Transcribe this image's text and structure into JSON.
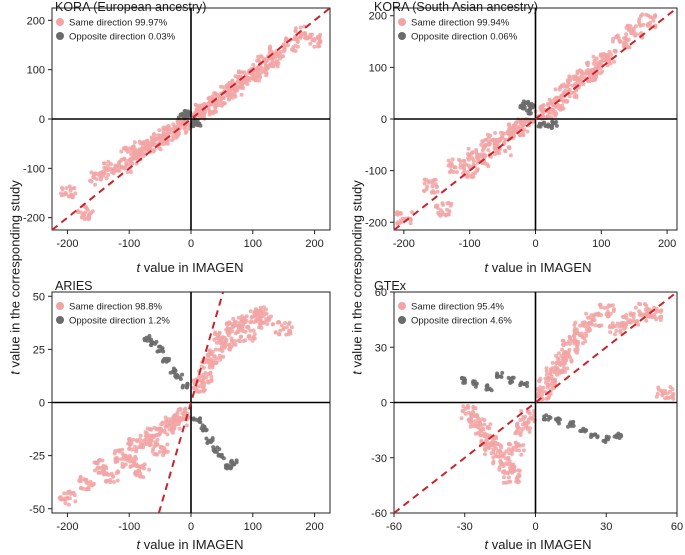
{
  "figure": {
    "ylabel_var": "t",
    "ylabel_rest": " value in the corresponding study",
    "xlabel_var": "t",
    "xlabel_rest": " value in IMAGEN"
  },
  "colors": {
    "same": "#f2a4a4",
    "opposite": "#6b6b6b",
    "diagonal": "#cc2229",
    "axes": "#000000"
  },
  "chart_data": [
    {
      "type": "scatter",
      "title": "KORA (European ancestry)",
      "xlim": [
        -225,
        225
      ],
      "ylim": [
        -225,
        225
      ],
      "xticks": [
        -200,
        -100,
        0,
        100,
        200
      ],
      "yticks": [
        -200,
        -100,
        0,
        100,
        200
      ],
      "diagonal_slope": 1,
      "legend_position": "top-left",
      "series": [
        {
          "name": "Same direction 99.97%",
          "quadrants": "same-sign",
          "points": [
            [
              -200,
              -150
            ],
            [
              -170,
              -190
            ],
            [
              -150,
              -120
            ],
            [
              -130,
              -100
            ],
            [
              -110,
              -95
            ],
            [
              -100,
              -70
            ],
            [
              -90,
              -80
            ],
            [
              -80,
              -60
            ],
            [
              -70,
              -55
            ],
            [
              -60,
              -50
            ],
            [
              -50,
              -40
            ],
            [
              -40,
              -30
            ],
            [
              -30,
              -25
            ],
            [
              -20,
              -15
            ],
            [
              -10,
              -8
            ],
            [
              10,
              8
            ],
            [
              20,
              18
            ],
            [
              30,
              25
            ],
            [
              40,
              35
            ],
            [
              50,
              45
            ],
            [
              60,
              55
            ],
            [
              70,
              60
            ],
            [
              80,
              75
            ],
            [
              90,
              85
            ],
            [
              100,
              90
            ],
            [
              110,
              100
            ],
            [
              120,
              115
            ],
            [
              130,
              120
            ],
            [
              140,
              135
            ],
            [
              160,
              150
            ],
            [
              180,
              175
            ],
            [
              200,
              160
            ]
          ]
        },
        {
          "name": "Opposite direction 0.03%",
          "quadrants": "opposite-sign",
          "points": [
            [
              -15,
              5
            ],
            [
              -10,
              10
            ],
            [
              -5,
              8
            ],
            [
              -8,
              12
            ],
            [
              8,
              -5
            ],
            [
              10,
              -8
            ],
            [
              5,
              -10
            ]
          ]
        }
      ]
    },
    {
      "type": "scatter",
      "title": "KORA (South Asian ancestry)",
      "xlim": [
        -215,
        215
      ],
      "ylim": [
        -215,
        215
      ],
      "xticks": [
        -200,
        -100,
        0,
        100,
        200
      ],
      "yticks": [
        -200,
        -100,
        0,
        100,
        200
      ],
      "diagonal_slope": 1,
      "legend_position": "top-left",
      "series": [
        {
          "name": "Same direction 99.94%",
          "quadrants": "same-sign",
          "points": [
            [
              -200,
              -190
            ],
            [
              -160,
              -130
            ],
            [
              -140,
              -175
            ],
            [
              -120,
              -90
            ],
            [
              -100,
              -100
            ],
            [
              -90,
              -70
            ],
            [
              -80,
              -80
            ],
            [
              -70,
              -50
            ],
            [
              -60,
              -40
            ],
            [
              -50,
              -60
            ],
            [
              -40,
              -30
            ],
            [
              -30,
              -20
            ],
            [
              -20,
              -12
            ],
            [
              -10,
              -5
            ],
            [
              10,
              5
            ],
            [
              20,
              15
            ],
            [
              30,
              30
            ],
            [
              40,
              45
            ],
            [
              50,
              55
            ],
            [
              60,
              70
            ],
            [
              70,
              80
            ],
            [
              80,
              85
            ],
            [
              90,
              100
            ],
            [
              100,
              110
            ],
            [
              110,
              120
            ],
            [
              130,
              150
            ],
            [
              150,
              170
            ],
            [
              170,
              190
            ]
          ]
        },
        {
          "name": "Opposite direction 0.06%",
          "quadrants": "opposite-sign",
          "points": [
            [
              -20,
              20
            ],
            [
              -15,
              30
            ],
            [
              -10,
              15
            ],
            [
              -5,
              25
            ],
            [
              10,
              -10
            ],
            [
              20,
              -12
            ],
            [
              30,
              -8
            ]
          ]
        }
      ]
    },
    {
      "type": "scatter",
      "title": "ARIES",
      "xlim": [
        -225,
        225
      ],
      "ylim": [
        -52,
        52
      ],
      "xticks": [
        -200,
        -100,
        0,
        100,
        200
      ],
      "yticks": [
        -50,
        -25,
        0,
        25,
        50
      ],
      "diagonal_slope": 1,
      "legend_position": "top-left",
      "series": [
        {
          "name": "Same direction 98.8%",
          "quadrants": "same-sign",
          "points": [
            [
              -200,
              -45
            ],
            [
              -170,
              -38
            ],
            [
              -150,
              -30
            ],
            [
              -130,
              -35
            ],
            [
              -110,
              -25
            ],
            [
              -100,
              -28
            ],
            [
              -90,
              -20
            ],
            [
              -80,
              -32
            ],
            [
              -70,
              -18
            ],
            [
              -60,
              -15
            ],
            [
              -50,
              -22
            ],
            [
              -40,
              -12
            ],
            [
              -30,
              -10
            ],
            [
              -20,
              -8
            ],
            [
              -10,
              -6
            ],
            [
              10,
              8
            ],
            [
              20,
              12
            ],
            [
              30,
              18
            ],
            [
              40,
              22
            ],
            [
              50,
              30
            ],
            [
              60,
              28
            ],
            [
              70,
              35
            ],
            [
              80,
              38
            ],
            [
              90,
              32
            ],
            [
              100,
              40
            ],
            [
              110,
              42
            ],
            [
              120,
              38
            ],
            [
              150,
              35
            ]
          ]
        },
        {
          "name": "Opposite direction 1.2%",
          "quadrants": "opposite-sign",
          "points": [
            [
              -70,
              30
            ],
            [
              -60,
              28
            ],
            [
              -50,
              25
            ],
            [
              -40,
              20
            ],
            [
              -30,
              15
            ],
            [
              -20,
              12
            ],
            [
              -10,
              8
            ],
            [
              10,
              -8
            ],
            [
              20,
              -12
            ],
            [
              30,
              -18
            ],
            [
              40,
              -22
            ],
            [
              50,
              -25
            ],
            [
              60,
              -30
            ],
            [
              70,
              -28
            ]
          ]
        }
      ]
    },
    {
      "type": "scatter",
      "title": "GTEx",
      "xlim": [
        -60,
        60
      ],
      "ylim": [
        -60,
        60
      ],
      "xticks": [
        -60,
        -30,
        0,
        30,
        60
      ],
      "yticks": [
        -60,
        -30,
        0,
        30,
        60
      ],
      "diagonal_slope": 1,
      "legend_position": "top-left",
      "series": [
        {
          "name": "Same direction 95.4%",
          "quadrants": "same-sign",
          "points": [
            [
              -28,
              -5
            ],
            [
              -25,
              -10
            ],
            [
              -22,
              -15
            ],
            [
              -20,
              -20
            ],
            [
              -18,
              -25
            ],
            [
              -15,
              -30
            ],
            [
              -12,
              -35
            ],
            [
              -10,
              -40
            ],
            [
              -8,
              -25
            ],
            [
              -5,
              -15
            ],
            [
              -3,
              -8
            ],
            [
              3,
              5
            ],
            [
              5,
              10
            ],
            [
              8,
              15
            ],
            [
              10,
              20
            ],
            [
              12,
              25
            ],
            [
              15,
              30
            ],
            [
              18,
              35
            ],
            [
              20,
              40
            ],
            [
              25,
              45
            ],
            [
              30,
              50
            ],
            [
              35,
              40
            ],
            [
              40,
              45
            ],
            [
              45,
              50
            ],
            [
              50,
              48
            ],
            [
              55,
              5
            ]
          ]
        },
        {
          "name": "Opposite direction 4.6%",
          "quadrants": "opposite-sign",
          "points": [
            [
              -30,
              12
            ],
            [
              -25,
              10
            ],
            [
              -20,
              8
            ],
            [
              -15,
              15
            ],
            [
              -10,
              12
            ],
            [
              -5,
              10
            ],
            [
              5,
              -8
            ],
            [
              10,
              -10
            ],
            [
              15,
              -12
            ],
            [
              20,
              -15
            ],
            [
              25,
              -18
            ],
            [
              30,
              -20
            ],
            [
              35,
              -18
            ]
          ]
        }
      ]
    }
  ]
}
